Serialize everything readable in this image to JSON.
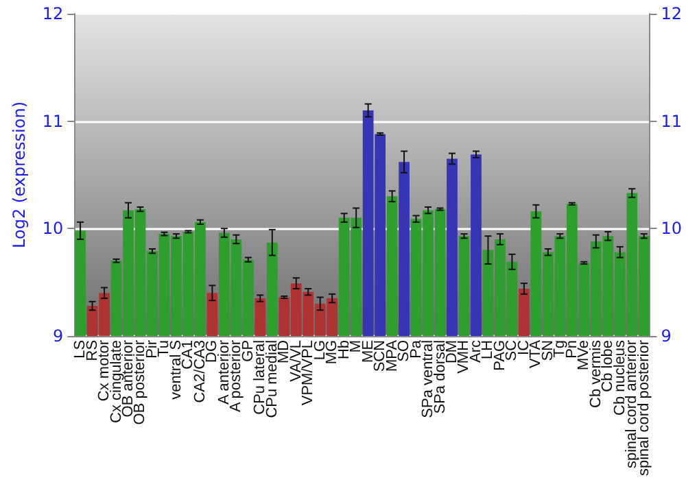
{
  "chart_data": {
    "type": "bar",
    "ylabel": "Log2 (expression)",
    "categories": [
      "LS",
      "RS",
      "Cx motor",
      "Cx cingulate",
      "OB anterior",
      "OB posterior",
      "Pir",
      "Tu",
      "ventral S",
      "CA1",
      "CA2/CA3",
      "DG",
      "A anterior",
      "A posterior",
      "GP",
      "CPu lateral",
      "CPu medial",
      "MD",
      "VA/VL",
      "VPM/VPL",
      "LG",
      "MG",
      "Hb",
      "M",
      "ME",
      "SCN",
      "MPA",
      "SO",
      "Pa",
      "SPa ventral",
      "SPa dorsal",
      "DM",
      "VMH",
      "Arc",
      "LH",
      "PAG",
      "SC",
      "IC",
      "VTA",
      "SN",
      "Tg",
      "Pn",
      "MVe",
      "Cb vermis",
      "Cb lobe",
      "Cb nucleus",
      "spinal cord anterior",
      "spinal cord posterior"
    ],
    "values": [
      9.98,
      9.28,
      9.4,
      9.7,
      10.17,
      10.18,
      9.79,
      9.95,
      9.93,
      9.97,
      10.06,
      9.4,
      9.96,
      9.9,
      9.71,
      9.35,
      9.87,
      9.36,
      9.49,
      9.41,
      9.3,
      9.35,
      10.1,
      10.1,
      11.1,
      10.88,
      10.3,
      10.62,
      10.09,
      10.17,
      10.18,
      10.65,
      9.93,
      10.69,
      9.8,
      9.9,
      9.69,
      9.44,
      10.16,
      9.78,
      9.93,
      10.23,
      9.68,
      9.88,
      9.93,
      9.78,
      10.33,
      9.93
    ],
    "errors": [
      0.08,
      0.04,
      0.05,
      0.015,
      0.07,
      0.02,
      0.02,
      0.015,
      0.02,
      0.01,
      0.02,
      0.07,
      0.04,
      0.04,
      0.02,
      0.03,
      0.12,
      0.01,
      0.05,
      0.03,
      0.06,
      0.04,
      0.04,
      0.09,
      0.06,
      0.01,
      0.05,
      0.1,
      0.03,
      0.03,
      0.01,
      0.05,
      0.02,
      0.03,
      0.13,
      0.05,
      0.07,
      0.05,
      0.06,
      0.03,
      0.02,
      0.01,
      0.01,
      0.06,
      0.04,
      0.05,
      0.04,
      0.02
    ],
    "colors": [
      "#2e9e2e",
      "#b03333",
      "#b03333",
      "#2e9e2e",
      "#2e9e2e",
      "#2e9e2e",
      "#2e9e2e",
      "#2e9e2e",
      "#2e9e2e",
      "#2e9e2e",
      "#2e9e2e",
      "#b03333",
      "#2e9e2e",
      "#2e9e2e",
      "#2e9e2e",
      "#b03333",
      "#2e9e2e",
      "#b03333",
      "#b03333",
      "#b03333",
      "#b03333",
      "#b03333",
      "#2e9e2e",
      "#2e9e2e",
      "#3535b5",
      "#3535b5",
      "#2e9e2e",
      "#3535b5",
      "#2e9e2e",
      "#2e9e2e",
      "#2e9e2e",
      "#3535b5",
      "#2e9e2e",
      "#3535b5",
      "#2e9e2e",
      "#2e9e2e",
      "#2e9e2e",
      "#b03333",
      "#2e9e2e",
      "#2e9e2e",
      "#2e9e2e",
      "#2e9e2e",
      "#2e9e2e",
      "#2e9e2e",
      "#2e9e2e",
      "#2e9e2e",
      "#2e9e2e",
      "#2e9e2e"
    ],
    "ylim": [
      9,
      12
    ],
    "yticks": [
      9,
      10,
      11,
      12
    ],
    "y2lim": [
      9,
      12
    ],
    "y2ticks": [
      9,
      10,
      11,
      12
    ],
    "grid": "y"
  }
}
